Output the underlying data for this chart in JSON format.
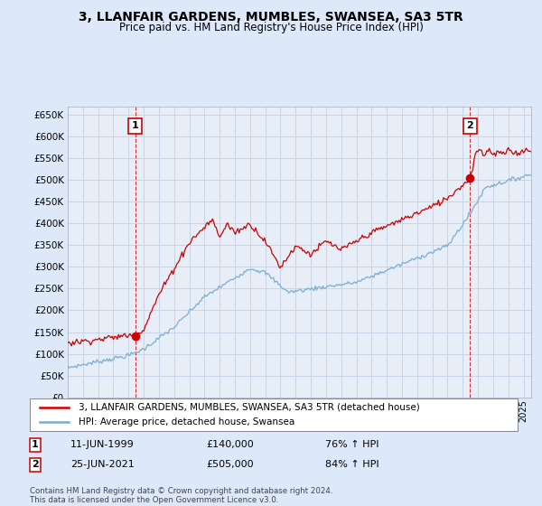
{
  "title": "3, LLANFAIR GARDENS, MUMBLES, SWANSEA, SA3 5TR",
  "subtitle": "Price paid vs. HM Land Registry's House Price Index (HPI)",
  "legend_line1": "3, LLANFAIR GARDENS, MUMBLES, SWANSEA, SA3 5TR (detached house)",
  "legend_line2": "HPI: Average price, detached house, Swansea",
  "annotation1_date": "11-JUN-1999",
  "annotation1_price": "£140,000",
  "annotation1_hpi": "76% ↑ HPI",
  "annotation2_date": "25-JUN-2021",
  "annotation2_price": "£505,000",
  "annotation2_hpi": "84% ↑ HPI",
  "copyright": "Contains HM Land Registry data © Crown copyright and database right 2024.\nThis data is licensed under the Open Government Licence v3.0.",
  "red_color": "#cc0000",
  "blue_color": "#7aadd4",
  "background_color": "#dde8f8",
  "plot_bg": "#e8eef8",
  "grid_color": "#c8d4e8",
  "ylim": [
    0,
    670000
  ],
  "yticks": [
    0,
    50000,
    100000,
    150000,
    200000,
    250000,
    300000,
    350000,
    400000,
    450000,
    500000,
    550000,
    600000,
    650000
  ],
  "sale1_x": 1999.44,
  "sale1_y": 140000,
  "sale2_x": 2021.48,
  "sale2_y": 505000,
  "vline1_x": 1999.44,
  "vline2_x": 2021.48,
  "xmin": 1995.0,
  "xmax": 2025.5
}
